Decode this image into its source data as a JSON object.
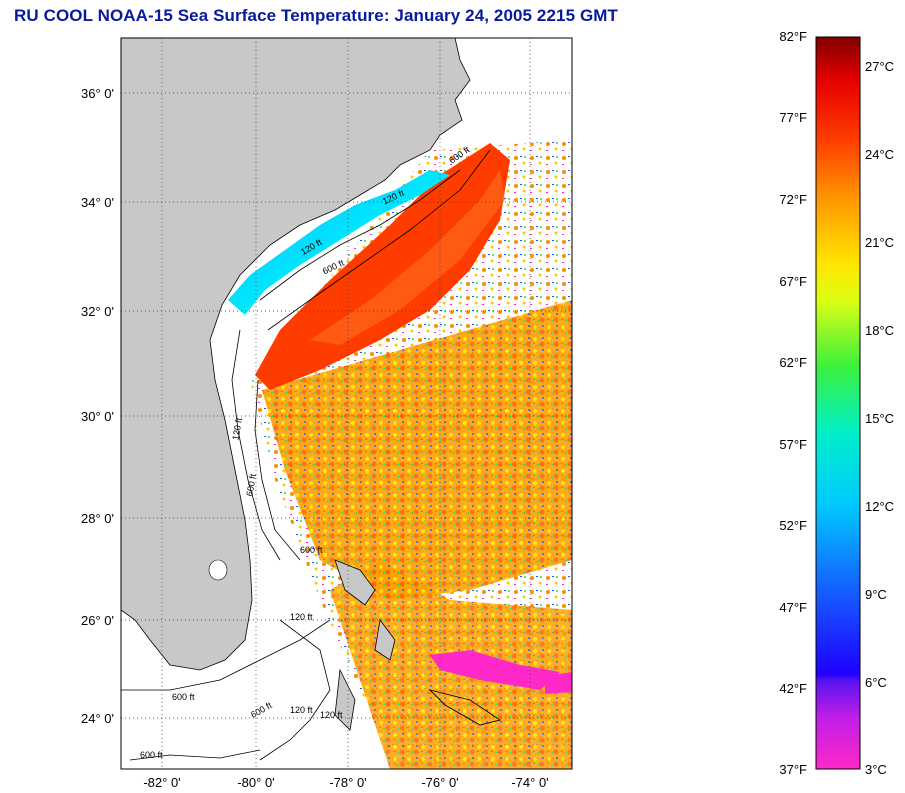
{
  "title": "RU COOL  NOAA-15  Sea Surface Temperature:  January 24, 2005 2215 GMT",
  "map": {
    "lat_labels": [
      "36° 0'",
      "34° 0'",
      "32° 0'",
      "30° 0'",
      "28° 0'",
      "26° 0'",
      "24° 0'"
    ],
    "lon_labels": [
      "-82° 0'",
      "-80° 0'",
      "-78° 0'",
      "-76° 0'",
      "-74° 0'"
    ],
    "contour_labels": [
      "120 ft",
      "600 ft",
      "120 ft",
      "600 ft",
      "120 ft",
      "600 ft",
      "120 ft",
      "600 ft",
      "120 ft",
      "600 ft",
      "600 ft",
      "120 ft",
      "600 ft"
    ]
  },
  "colorbar": {
    "fahrenheit": [
      "82°F",
      "77°F",
      "72°F",
      "67°F",
      "62°F",
      "57°F",
      "52°F",
      "47°F",
      "42°F",
      "37°F"
    ],
    "celsius": [
      "27°C",
      "24°C",
      "21°C",
      "18°C",
      "15°C",
      "12°C",
      "9°C",
      "6°C",
      "3°C"
    ]
  },
  "colors": {
    "title": "#0a1a9c",
    "land": "#c8c8c8",
    "warm": "#ff3c00",
    "cold": "#ff28c8"
  }
}
